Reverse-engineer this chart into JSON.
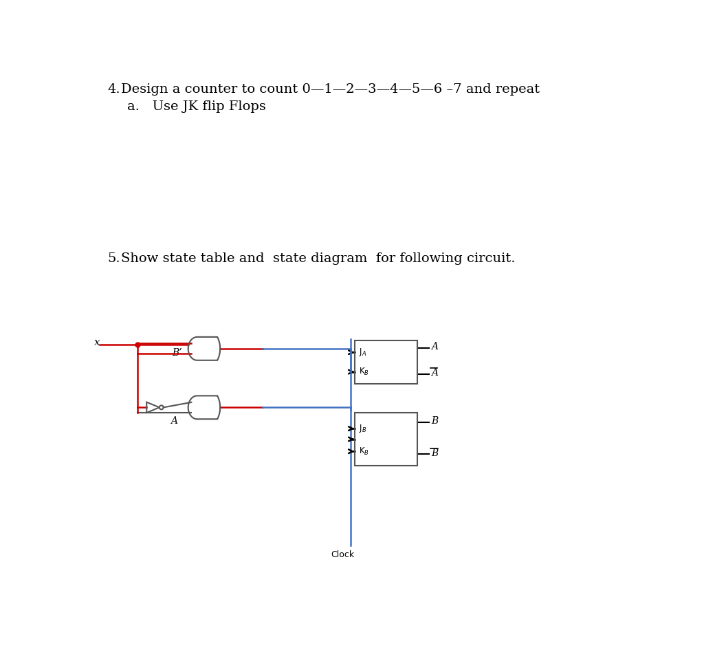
{
  "bg_color": "#ffffff",
  "gate_color": "#555555",
  "red_color": "#cc0000",
  "blue_color": "#4472c4",
  "black_color": "#000000",
  "q4_number": "4.",
  "q4_text": "Design a counter to count 0—1—2—3—4—5—6 –7 and repeat",
  "q4a_text": "a.   Use JK flip Flops",
  "q5_number": "5.",
  "q5_text": "Show state table and  state diagram  for following circuit.",
  "clock_label": "Clock",
  "label_x": "x",
  "label_Bprime": "B’",
  "label_A": "A",
  "label_JA": "JA",
  "label_KB_upper": "KB",
  "label_out_A": "A",
  "label_out_Abar": "A",
  "label_B": "B",
  "label_JB": "JB",
  "label_KB_lower": "KB",
  "label_out_B": "B",
  "label_out_Bbar": "B"
}
